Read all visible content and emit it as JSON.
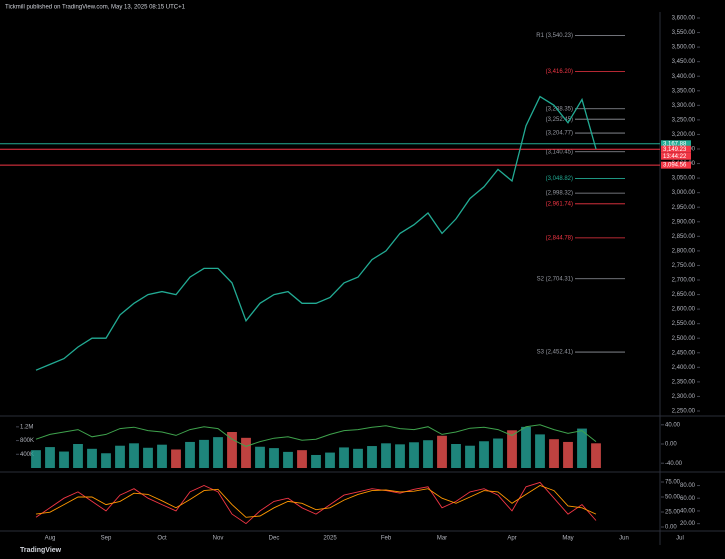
{
  "header": {
    "title": "Tickmill published on TradingView.com, May 13, 2025 08:15 UTC+1"
  },
  "footer": {
    "brand": "TradingView"
  },
  "chart_data": [
    {
      "type": "line",
      "categories": [
        null,
        "Aug",
        null,
        null,
        null,
        "Sep",
        null,
        null,
        null,
        "Oct",
        null,
        null,
        null,
        "Nov",
        null,
        null,
        null,
        "Dec",
        null,
        null,
        null,
        "2025",
        null,
        null,
        null,
        "Feb",
        null,
        null,
        null,
        "Mar",
        null,
        null,
        null,
        null,
        "Apr",
        null,
        null,
        null,
        "May",
        null,
        null,
        null,
        "Jun",
        null,
        null,
        null,
        "Jul",
        null
      ],
      "values": [
        2390,
        2410,
        2430,
        2470,
        2500,
        2500,
        2580,
        2620,
        2650,
        2660,
        2650,
        2710,
        2740,
        2740,
        2690,
        2560,
        2620,
        2650,
        2660,
        2620,
        2620,
        2640,
        2690,
        2710,
        2770,
        2800,
        2860,
        2890,
        2930,
        2860,
        2910,
        2980,
        3020,
        3080,
        3040,
        3230,
        3330,
        3300,
        3240,
        3320,
        3150,
        null,
        null,
        null,
        null,
        null,
        null,
        null
      ],
      "color": "#22ab94",
      "ylim": [
        2250,
        3600
      ],
      "yticks": [
        {
          "value": 2250,
          "label": "2,250.00"
        },
        {
          "value": 2300,
          "label": "2,300.00"
        },
        {
          "value": 2350,
          "label": "2,350.00"
        },
        {
          "value": 2400,
          "label": "2,400.00"
        },
        {
          "value": 2450,
          "label": "2,450.00"
        },
        {
          "value": 2500,
          "label": "2,500.00"
        },
        {
          "value": 2550,
          "label": "2,550.00"
        },
        {
          "value": 2600,
          "label": "2,600.00"
        },
        {
          "value": 2650,
          "label": "2,650.00"
        },
        {
          "value": 2700,
          "label": "2,700.00"
        },
        {
          "value": 2750,
          "label": "2,750.00"
        },
        {
          "value": 2800,
          "label": "2,800.00"
        },
        {
          "value": 2850,
          "label": "2,850.00"
        },
        {
          "value": 2900,
          "label": "2,900.00"
        },
        {
          "value": 2950,
          "label": "2,950.00"
        },
        {
          "value": 3000,
          "label": "3,000.00"
        },
        {
          "value": 3050,
          "label": "3,050.00"
        },
        {
          "value": 3100,
          "label": "3,100.00"
        },
        {
          "value": 3150,
          "label": "3,150.00"
        },
        {
          "value": 3200,
          "label": "3,200.00"
        },
        {
          "value": 3250,
          "label": "3,250.00"
        },
        {
          "value": 3300,
          "label": "3,300.00"
        },
        {
          "value": 3350,
          "label": "3,350.00"
        },
        {
          "value": 3400,
          "label": "3,400.00"
        },
        {
          "value": 3450,
          "label": "3,450.00"
        },
        {
          "value": 3500,
          "label": "3,500.00"
        },
        {
          "value": 3550,
          "label": "3,550.00"
        },
        {
          "value": 3600,
          "label": "3,600.00"
        }
      ],
      "grid": false,
      "levels": [
        {
          "label": "R1 (3,540.23)",
          "value": 3540.23,
          "color": "#9598a1"
        },
        {
          "label": "(3,416.20)",
          "value": 3416.2,
          "color": "#f23645"
        },
        {
          "label": "(3,288.35)",
          "value": 3288.35,
          "color": "#9598a1"
        },
        {
          "label": "(3,252.45)",
          "value": 3252.45,
          "color": "#9598a1"
        },
        {
          "label": "(3,204.77)",
          "value": 3204.77,
          "color": "#9598a1"
        },
        {
          "label": "(3,140.45)",
          "value": 3140.45,
          "color": "#9598a1"
        },
        {
          "label": "(3,048.82)",
          "value": 3048.82,
          "color": "#22ab94"
        },
        {
          "label": "(2,998.32)",
          "value": 2998.32,
          "color": "#9598a1"
        },
        {
          "label": "(2,961.74)",
          "value": 2961.74,
          "color": "#f23645"
        },
        {
          "label": "(2,844.78)",
          "value": 2844.78,
          "color": "#f23645"
        },
        {
          "label": "S2 (2,704.31)",
          "value": 2704.31,
          "color": "#9598a1"
        },
        {
          "label": "S3 (2,452.41)",
          "value": 2452.41,
          "color": "#9598a1"
        }
      ],
      "price_labels": [
        {
          "label": "3,167.88",
          "value": 3167.88,
          "color": "#22ab94"
        },
        {
          "label": "3,149.23",
          "value": 3149.23,
          "color": "#f23645"
        },
        {
          "label": "3,094.56",
          "value": 3094.56,
          "color": "#f23645"
        }
      ],
      "countdown": "13:44:22"
    },
    {
      "type": "bar",
      "values": [
        520000,
        610000,
        480000,
        700000,
        560000,
        430000,
        650000,
        720000,
        590000,
        680000,
        540000,
        760000,
        820000,
        900000,
        1050000,
        880000,
        620000,
        580000,
        470000,
        520000,
        380000,
        450000,
        600000,
        560000,
        640000,
        720000,
        690000,
        750000,
        810000,
        940000,
        700000,
        650000,
        780000,
        860000,
        1100000,
        1200000,
        980000,
        840000,
        760000,
        1150000,
        720000,
        null,
        null,
        null,
        null,
        null,
        null,
        null
      ],
      "up_color": "#26a69a",
      "down_color": "#ef5350",
      "ylim": [
        0,
        1400000
      ],
      "yticks": [
        {
          "value": 400000,
          "label": "400K"
        },
        {
          "value": 800000,
          "label": "800K"
        },
        {
          "value": 1200000,
          "label": "1.2M"
        }
      ],
      "y2lim": [
        -50,
        50
      ],
      "y2ticks": [
        {
          "value": 40,
          "label": "40.00"
        },
        {
          "value": 0,
          "label": "0.00"
        },
        {
          "value": -40,
          "label": "-40.00"
        }
      ],
      "series": [
        {
          "color": "#3fa34d",
          "axis": "y2",
          "values": [
            10,
            20,
            25,
            30,
            15,
            20,
            32,
            35,
            28,
            25,
            18,
            30,
            36,
            32,
            10,
            -5,
            5,
            12,
            15,
            8,
            10,
            20,
            28,
            30,
            35,
            38,
            32,
            30,
            36,
            20,
            25,
            33,
            35,
            30,
            18,
            36,
            40,
            30,
            22,
            28,
            5,
            null,
            null,
            null,
            null,
            null,
            null,
            null
          ]
        }
      ]
    },
    {
      "type": "line",
      "ylim": [
        10,
        95
      ],
      "yticks": [
        {
          "value": 80,
          "label": "80.00"
        },
        {
          "value": 60,
          "label": "60.00"
        },
        {
          "value": 40,
          "label": "40.00"
        },
        {
          "value": 20,
          "label": "20.00"
        }
      ],
      "y2lim": [
        -5,
        85
      ],
      "y2ticks": [
        {
          "value": 75,
          "label": "75.00"
        },
        {
          "value": 50,
          "label": "50.00"
        },
        {
          "value": 25,
          "label": "25.00"
        },
        {
          "value": 0,
          "label": "0.00"
        }
      ],
      "series": [
        {
          "color": "#f23645",
          "values": [
            30,
            45,
            60,
            70,
            55,
            40,
            65,
            75,
            60,
            50,
            40,
            70,
            80,
            70,
            35,
            20,
            40,
            55,
            60,
            45,
            35,
            50,
            65,
            70,
            75,
            72,
            68,
            74,
            78,
            45,
            55,
            70,
            75,
            65,
            40,
            78,
            85,
            60,
            35,
            50,
            25,
            null,
            null,
            null,
            null,
            null,
            null,
            null
          ]
        },
        {
          "color": "#ff9800",
          "values": [
            35,
            38,
            50,
            62,
            62,
            50,
            55,
            68,
            66,
            56,
            45,
            58,
            72,
            74,
            50,
            30,
            32,
            45,
            55,
            52,
            42,
            45,
            57,
            66,
            72,
            73,
            70,
            71,
            75,
            60,
            52,
            62,
            72,
            70,
            52,
            66,
            80,
            72,
            48,
            45,
            35,
            null,
            null,
            null,
            null,
            null,
            null,
            null
          ]
        }
      ]
    }
  ]
}
